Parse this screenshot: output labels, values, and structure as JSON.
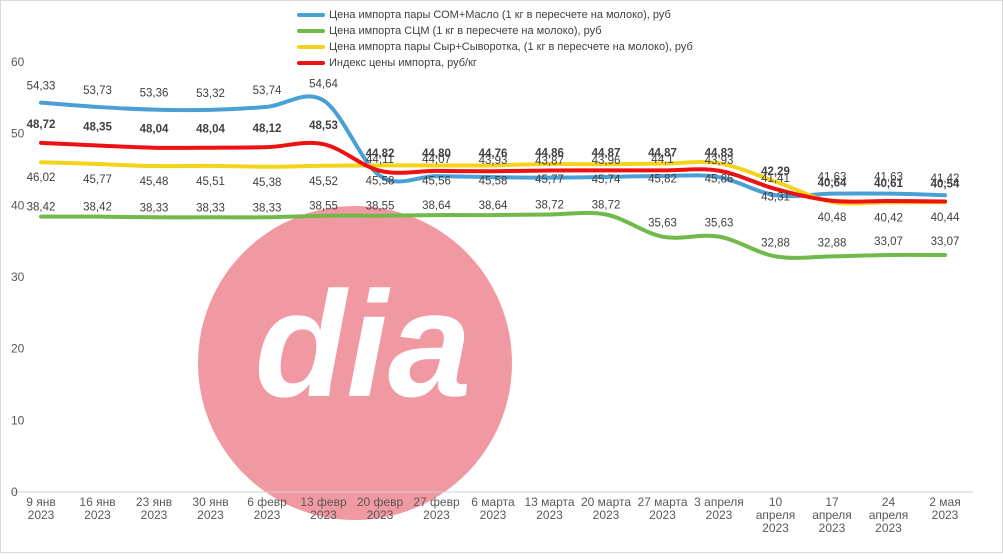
{
  "chart_data": {
    "type": "line",
    "categories": [
      [
        "9 янв",
        "2023"
      ],
      [
        "16 янв",
        "2023"
      ],
      [
        "23 янв",
        "2023"
      ],
      [
        "30 янв",
        "2023"
      ],
      [
        "6 февр",
        "2023"
      ],
      [
        "13 февр",
        "2023"
      ],
      [
        "20 февр",
        "2023"
      ],
      [
        "27 февр",
        "2023"
      ],
      [
        "6 марта",
        "2023"
      ],
      [
        "13 марта",
        "2023"
      ],
      [
        "20 марта",
        "2023"
      ],
      [
        "27 марта",
        "2023"
      ],
      [
        "3 апреля",
        "2023"
      ],
      [
        "10",
        "апреля",
        "2023"
      ],
      [
        "17",
        "апреля",
        "2023"
      ],
      [
        "24",
        "апреля",
        "2023"
      ],
      [
        "2 мая",
        "2023"
      ]
    ],
    "ylim": [
      0,
      60
    ],
    "yticks": [
      0,
      10,
      20,
      30,
      40,
      50,
      60
    ],
    "series": [
      {
        "name": "Цена импорта пары СОМ+Масло  (1 кг в пересчете на молоко), руб",
        "color": "#4a9fd4",
        "values": [
          54.33,
          53.73,
          53.36,
          53.32,
          53.74,
          54.64,
          44.11,
          44.07,
          43.93,
          43.87,
          43.96,
          44.1,
          43.93,
          41.41,
          41.63,
          41.63,
          41.42
        ],
        "labels": [
          "54,33",
          "53,73",
          "53,36",
          "53,32",
          "53,74",
          "54,64",
          "44,11",
          "44,07",
          "43,93",
          "43,87",
          "43,96",
          "44,1",
          "43,93",
          "41,41",
          "41,63",
          "41,63",
          "41,42"
        ]
      },
      {
        "name": "Цена импорта СЦМ (1 кг в пересчете на молоко), руб",
        "color": "#70b94a",
        "values": [
          38.42,
          38.42,
          38.33,
          38.33,
          38.33,
          38.55,
          38.55,
          38.64,
          38.64,
          38.72,
          38.72,
          35.63,
          35.63,
          32.88,
          32.88,
          33.07,
          33.07
        ],
        "labels": [
          "38,42",
          "38,42",
          "38,33",
          "38,33",
          "38,33",
          "38,55",
          "38,55",
          "38,64",
          "38,64",
          "38,72",
          "38,72",
          "35,63",
          "35,63",
          "32,88",
          "32,88",
          "33,07",
          "33,07"
        ]
      },
      {
        "name": "Цена импорта пары Сыр+Сыворотка, (1 кг в пересчете на молоко), руб",
        "color": "#f2d41a",
        "values": [
          46.02,
          45.77,
          45.48,
          45.51,
          45.38,
          45.52,
          45.58,
          45.56,
          45.58,
          45.77,
          45.74,
          45.82,
          45.86,
          43.31,
          40.48,
          40.42,
          40.44
        ],
        "labels": [
          "46,02",
          "45,77",
          "45,48",
          "45,51",
          "45,38",
          "45,52",
          "45,58",
          "45,56",
          "45,58",
          "45,77",
          "45,74",
          "45,82",
          "45,86",
          "43,31",
          "40,48",
          "40,42",
          "40,44"
        ]
      },
      {
        "name": "Индекс цены импорта, руб/кг",
        "color": "#ee1111",
        "values": [
          48.72,
          48.35,
          48.04,
          48.04,
          48.12,
          48.53,
          44.82,
          44.8,
          44.76,
          44.86,
          44.87,
          44.87,
          44.83,
          42.29,
          40.64,
          40.61,
          40.54
        ],
        "labels": [
          "48,72",
          "48,35",
          "48,04",
          "48,04",
          "48,12",
          "48,53",
          "44,82",
          "44,80",
          "44,76",
          "44,86",
          "44,87",
          "44,87",
          "44,83",
          "42,29",
          "40,64",
          "40,61",
          "40,54"
        ]
      }
    ],
    "legend_position": "top-center",
    "grid": false
  },
  "watermark": {
    "text": "dia",
    "color": "#f08e98"
  }
}
